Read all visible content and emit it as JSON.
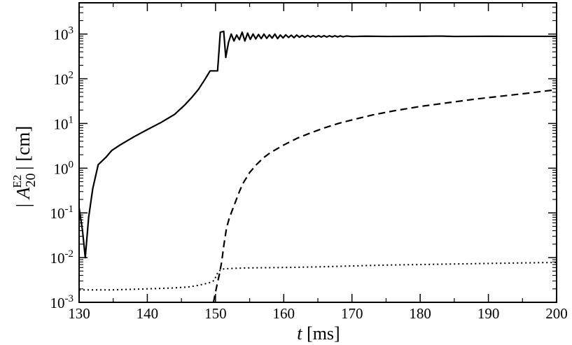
{
  "chart_data": {
    "type": "line",
    "xlabel": {
      "var": "t",
      "unit": " [ms]"
    },
    "ylabel": {
      "base": "A",
      "sup": "E2",
      "sub": "20",
      "unit": "[cm]"
    },
    "x_scale": "linear",
    "y_scale": "log",
    "xlim": [
      130,
      200
    ],
    "ylim": [
      0.001,
      5000
    ],
    "grid": false,
    "x_ticks": [
      130,
      140,
      150,
      160,
      170,
      180,
      190,
      200
    ],
    "y_ticks": [
      {
        "value": 0.001,
        "base": "10",
        "exp": "-3"
      },
      {
        "value": 0.01,
        "base": "10",
        "exp": "-2"
      },
      {
        "value": 0.1,
        "base": "10",
        "exp": "-1"
      },
      {
        "value": 1,
        "base": "10",
        "exp": "0"
      },
      {
        "value": 10,
        "base": "10",
        "exp": "1"
      },
      {
        "value": 100,
        "base": "10",
        "exp": "2"
      },
      {
        "value": 1000,
        "base": "10",
        "exp": "3"
      }
    ],
    "series": [
      {
        "style": "solid",
        "points": [
          [
            130.0,
            0.13
          ],
          [
            130.5,
            0.04
          ],
          [
            130.9,
            0.01
          ],
          [
            131.4,
            0.08
          ],
          [
            132.0,
            0.35
          ],
          [
            132.8,
            1.2
          ],
          [
            134.0,
            1.8
          ],
          [
            134.8,
            2.5
          ],
          [
            136.0,
            3.3
          ],
          [
            138.0,
            5.0
          ],
          [
            140.0,
            7.3
          ],
          [
            142.0,
            10.5
          ],
          [
            144.0,
            16.0
          ],
          [
            145.5,
            26.0
          ],
          [
            146.5,
            38.0
          ],
          [
            147.5,
            58.0
          ],
          [
            148.5,
            100.0
          ],
          [
            149.2,
            150.0
          ],
          [
            150.3,
            150.0
          ],
          [
            150.7,
            1100.0
          ],
          [
            151.2,
            1150.0
          ],
          [
            151.5,
            300.0
          ],
          [
            151.9,
            650.0
          ],
          [
            152.3,
            1000.0
          ],
          [
            152.7,
            700.0
          ],
          [
            153.1,
            950.0
          ],
          [
            153.5,
            750.0
          ],
          [
            153.9,
            1100.0
          ],
          [
            154.3,
            700.0
          ],
          [
            154.7,
            1050.0
          ],
          [
            155.1,
            760.0
          ],
          [
            155.5,
            1000.0
          ],
          [
            155.9,
            780.0
          ],
          [
            156.3,
            980.0
          ],
          [
            156.7,
            790.0
          ],
          [
            157.1,
            1000.0
          ],
          [
            157.5,
            800.0
          ],
          [
            157.9,
            960.0
          ],
          [
            158.3,
            810.0
          ],
          [
            158.7,
            1000.0
          ],
          [
            159.1,
            790.0
          ],
          [
            159.5,
            950.0
          ],
          [
            159.9,
            820.0
          ],
          [
            160.3,
            960.0
          ],
          [
            160.7,
            840.0
          ],
          [
            161.1,
            940.0
          ],
          [
            161.5,
            830.0
          ],
          [
            161.9,
            950.0
          ],
          [
            162.3,
            850.0
          ],
          [
            162.7,
            930.0
          ],
          [
            163.1,
            850.0
          ],
          [
            163.5,
            930.0
          ],
          [
            163.9,
            860.0
          ],
          [
            164.3,
            920.0
          ],
          [
            164.7,
            860.0
          ],
          [
            165.1,
            920.0
          ],
          [
            165.5,
            860.0
          ],
          [
            165.9,
            920.0
          ],
          [
            166.3,
            860.0
          ],
          [
            166.7,
            915.0
          ],
          [
            167.1,
            865.0
          ],
          [
            167.5,
            915.0
          ],
          [
            167.9,
            865.0
          ],
          [
            168.3,
            910.0
          ],
          [
            168.7,
            870.0
          ],
          [
            169.2,
            905.0
          ],
          [
            170.0,
            880.0
          ],
          [
            172.0,
            895.0
          ],
          [
            175.0,
            885.0
          ],
          [
            180.0,
            890.0
          ],
          [
            183.0,
            900.0
          ],
          [
            185.0,
            885.0
          ],
          [
            190.0,
            890.0
          ],
          [
            195.0,
            888.0
          ],
          [
            200.0,
            888.0
          ]
        ]
      },
      {
        "style": "dashed",
        "points": [
          [
            149.7,
            0.001
          ],
          [
            150.0,
            0.0017
          ],
          [
            150.3,
            0.0028
          ],
          [
            150.6,
            0.0045
          ],
          [
            150.9,
            0.008
          ],
          [
            151.2,
            0.018
          ],
          [
            151.6,
            0.045
          ],
          [
            152.0,
            0.075
          ],
          [
            152.5,
            0.12
          ],
          [
            153.0,
            0.19
          ],
          [
            153.5,
            0.3
          ],
          [
            154.0,
            0.45
          ],
          [
            154.5,
            0.6
          ],
          [
            155.0,
            0.8
          ],
          [
            156.0,
            1.2
          ],
          [
            157.0,
            1.7
          ],
          [
            158.0,
            2.2
          ],
          [
            159.0,
            2.7
          ],
          [
            160.0,
            3.3
          ],
          [
            162.0,
            4.7
          ],
          [
            164.0,
            6.2
          ],
          [
            166.0,
            8.0
          ],
          [
            168.0,
            10.0
          ],
          [
            170.0,
            12.0
          ],
          [
            173.0,
            15.5
          ],
          [
            176.0,
            19.0
          ],
          [
            180.0,
            24.0
          ],
          [
            184.0,
            29.0
          ],
          [
            188.0,
            35.0
          ],
          [
            192.0,
            41.0
          ],
          [
            196.0,
            48.0
          ],
          [
            200.0,
            57.0
          ]
        ]
      },
      {
        "style": "dotted",
        "points": [
          [
            130.0,
            0.0019
          ],
          [
            135.0,
            0.0019
          ],
          [
            140.0,
            0.002
          ],
          [
            144.0,
            0.0021
          ],
          [
            146.0,
            0.0022
          ],
          [
            147.5,
            0.0024
          ],
          [
            148.5,
            0.0026
          ],
          [
            149.3,
            0.0028
          ],
          [
            149.8,
            0.0031
          ],
          [
            150.3,
            0.0045
          ],
          [
            150.8,
            0.0055
          ],
          [
            152.0,
            0.0057
          ],
          [
            155.0,
            0.0059
          ],
          [
            160.0,
            0.006
          ],
          [
            165.0,
            0.0062
          ],
          [
            170.0,
            0.0065
          ],
          [
            175.0,
            0.0068
          ],
          [
            180.0,
            0.007
          ],
          [
            185.0,
            0.0072
          ],
          [
            190.0,
            0.0074
          ],
          [
            195.0,
            0.0076
          ],
          [
            200.0,
            0.0078
          ]
        ]
      }
    ]
  }
}
